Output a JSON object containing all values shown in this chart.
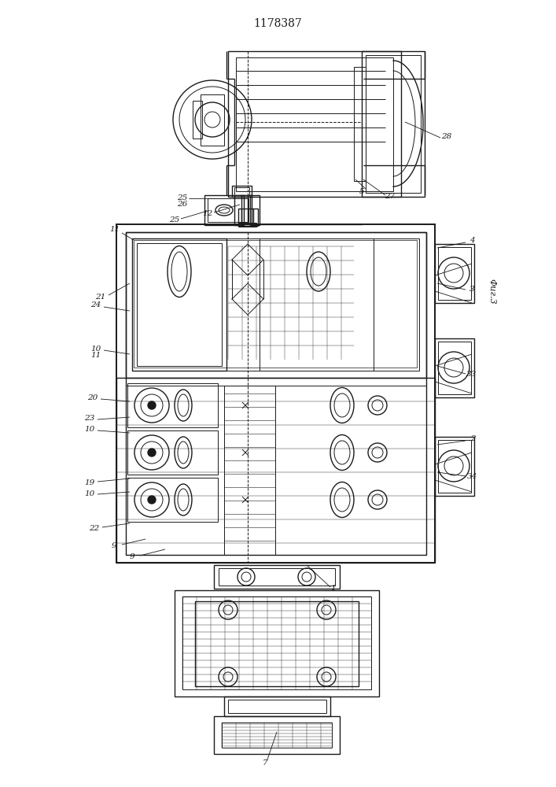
{
  "title": "1178387",
  "figure_label": "Фиг.3",
  "bg_color": "#ffffff",
  "line_color": "#1a1a1a",
  "title_fontsize": 10,
  "label_fontsize": 7.5
}
